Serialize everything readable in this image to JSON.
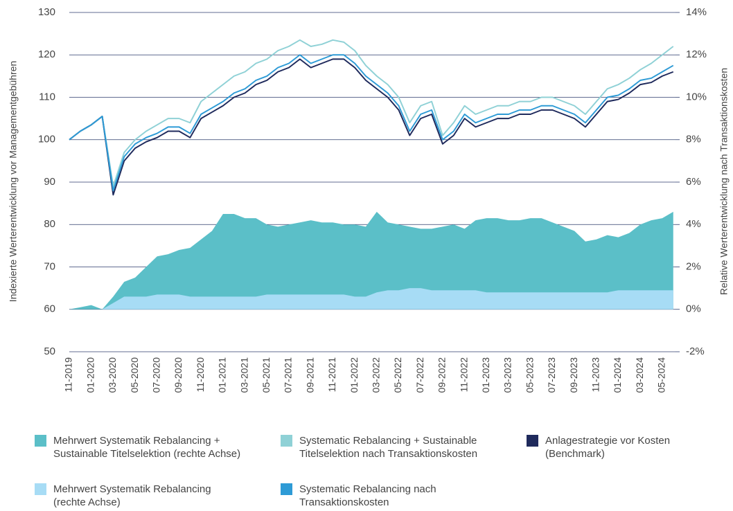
{
  "chart_data": {
    "type": "line",
    "y_label": "Indexierte Werterentwicklung vor Managementgebühren",
    "y2_label": "Relative Werterentwicklung nach Transaktionskosten",
    "categories": [
      "11-2019",
      null,
      "01-2020",
      null,
      "03-2020",
      null,
      "05-2020",
      null,
      "07-2020",
      null,
      "09-2020",
      null,
      "11-2020",
      null,
      "01-2021",
      null,
      "03-2021",
      null,
      "05-2021",
      null,
      "07-2021",
      null,
      "09-2021",
      null,
      "11-2021",
      null,
      "01-2022",
      null,
      "03-2022",
      null,
      "05-2022",
      null,
      "07-2022",
      null,
      "09-2022",
      null,
      "11-2022",
      null,
      "01-2023",
      null,
      "03-2023",
      null,
      "05-2023",
      null,
      "07-2023",
      null,
      "09-2023",
      null,
      "11-2023",
      null,
      "01-2024",
      null,
      "03-2024",
      null,
      "05-2024",
      null
    ],
    "ylim": [
      50,
      130
    ],
    "yticks": [
      50,
      60,
      70,
      80,
      90,
      100,
      110,
      120,
      130
    ],
    "y2lim": [
      -2,
      14
    ],
    "y2ticks": [
      {
        "value": -2,
        "label": "-2%"
      },
      {
        "value": 0,
        "label": "0%"
      },
      {
        "value": 2,
        "label": "2%"
      },
      {
        "value": 4,
        "label": "4%"
      },
      {
        "value": 6,
        "label": "6%"
      },
      {
        "value": 8,
        "label": "8%"
      },
      {
        "value": 10,
        "label": "10%"
      },
      {
        "value": 12,
        "label": "12%"
      },
      {
        "value": 14,
        "label": "14%"
      }
    ],
    "grid": true,
    "series": [
      {
        "name": "Mehrwert Systematik Rebalancing +\nSustainable Titelselektion (rechte Achse)",
        "color": "#5bbfc8",
        "type": "area",
        "axis": "y2",
        "values": [
          0,
          0.1,
          0.2,
          0,
          0.6,
          1.3,
          1.5,
          2,
          2.5,
          2.6,
          2.8,
          2.9,
          3.3,
          3.7,
          4.5,
          4.5,
          4.3,
          4.3,
          4.0,
          3.9,
          4.0,
          4.1,
          4.2,
          4.1,
          4.1,
          4.0,
          4.0,
          3.9,
          4.6,
          4.1,
          4.0,
          3.9,
          3.8,
          3.8,
          3.9,
          4.0,
          3.8,
          4.2,
          4.3,
          4.3,
          4.2,
          4.2,
          4.3,
          4.3,
          4.1,
          3.9,
          3.7,
          3.2,
          3.3,
          3.5,
          3.4,
          3.6,
          4.0,
          4.2,
          4.3,
          4.6
        ]
      },
      {
        "name": "Systematic Rebalancing + Sustainable\nTitelselektion nach Transaktionskosten",
        "color": "#8fd1d6",
        "type": "line",
        "values": [
          100,
          102,
          103.5,
          105.5,
          89,
          97,
          100,
          102,
          103.5,
          105,
          105,
          104,
          109,
          111,
          113,
          115,
          116,
          118,
          119,
          121,
          122,
          123.5,
          122,
          122.5,
          123.5,
          123,
          121,
          117.5,
          115,
          113,
          110,
          104,
          108,
          109,
          101,
          104,
          108,
          106,
          107,
          108,
          108,
          109,
          109,
          110,
          110,
          109,
          108,
          106,
          109,
          112,
          113,
          114.5,
          116.5,
          118,
          120,
          122
        ]
      },
      {
        "name": "Anlagestrategie vor Kosten\n(Benchmark)",
        "color": "#1f2a5c",
        "type": "line",
        "values": [
          100,
          102,
          103.5,
          105.5,
          87,
          95,
          98,
          99.5,
          100.5,
          102,
          102,
          100.5,
          105,
          106.5,
          108,
          110,
          111,
          113,
          114,
          116,
          117,
          119,
          117,
          118,
          119,
          119,
          117,
          114,
          112,
          110,
          107,
          101,
          105,
          106,
          99,
          101,
          105,
          103,
          104,
          105,
          105,
          106,
          106,
          107,
          107,
          106,
          105,
          103,
          106,
          109,
          109.5,
          111,
          113,
          113.5,
          115,
          116
        ]
      },
      {
        "name": "Mehrwert Systematik Rebalancing\n(rechte Achse)",
        "color": "#a7dcf5",
        "type": "area",
        "axis": "y2",
        "values": [
          0,
          0,
          0,
          0,
          0.3,
          0.6,
          0.6,
          0.6,
          0.7,
          0.7,
          0.7,
          0.6,
          0.6,
          0.6,
          0.6,
          0.6,
          0.6,
          0.6,
          0.7,
          0.7,
          0.7,
          0.7,
          0.7,
          0.7,
          0.7,
          0.7,
          0.6,
          0.6,
          0.8,
          0.9,
          0.9,
          1.0,
          1.0,
          0.9,
          0.9,
          0.9,
          0.9,
          0.9,
          0.8,
          0.8,
          0.8,
          0.8,
          0.8,
          0.8,
          0.8,
          0.8,
          0.8,
          0.8,
          0.8,
          0.8,
          0.9,
          0.9,
          0.9,
          0.9,
          0.9,
          0.9
        ]
      },
      {
        "name": "Systematic Rebalancing nach\nTransaktionskosten",
        "color": "#2e9bd6",
        "type": "line",
        "values": [
          100,
          102,
          103.5,
          105.5,
          88,
          96,
          99,
          100.5,
          101.5,
          103,
          103,
          101.5,
          106,
          107.5,
          109,
          111,
          112,
          114,
          115,
          117,
          118,
          120,
          118,
          119,
          120,
          120,
          118,
          115,
          113,
          111,
          108,
          102,
          106,
          107,
          100,
          102,
          106,
          104,
          105,
          106,
          106,
          107,
          107,
          108,
          108,
          107,
          106,
          104,
          107,
          110,
          110.5,
          112,
          114,
          114.5,
          116,
          117.5
        ]
      }
    ]
  }
}
